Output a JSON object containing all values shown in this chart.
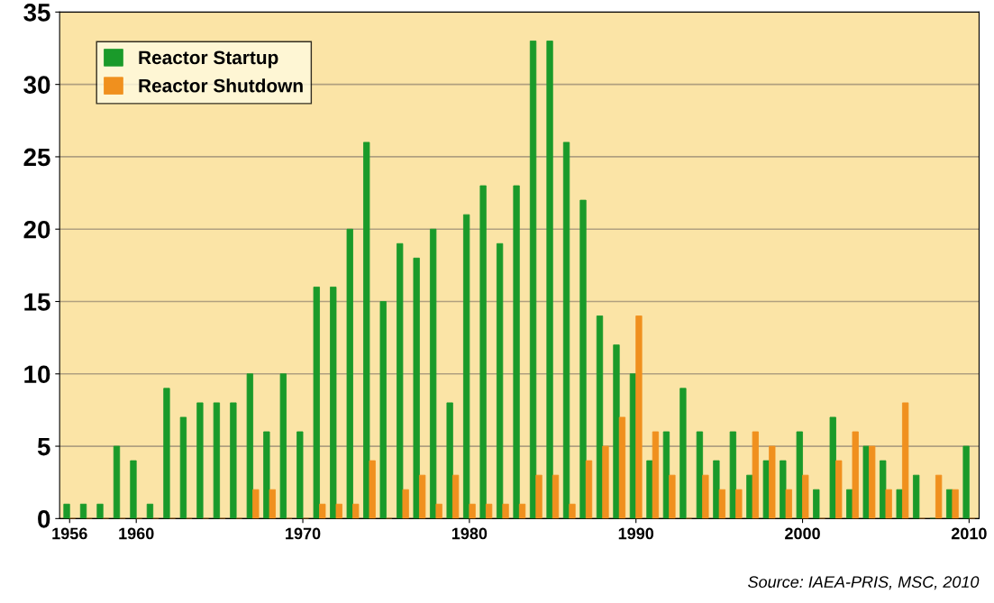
{
  "chart_data": {
    "type": "bar",
    "x": [
      1956,
      1957,
      1958,
      1959,
      1960,
      1961,
      1962,
      1963,
      1964,
      1965,
      1966,
      1967,
      1968,
      1969,
      1970,
      1971,
      1972,
      1973,
      1974,
      1975,
      1976,
      1977,
      1978,
      1979,
      1980,
      1981,
      1982,
      1983,
      1984,
      1985,
      1986,
      1987,
      1988,
      1989,
      1990,
      1991,
      1992,
      1993,
      1994,
      1995,
      1996,
      1997,
      1998,
      1999,
      2000,
      2001,
      2002,
      2003,
      2004,
      2005,
      2006,
      2007,
      2008,
      2009,
      2010
    ],
    "series": [
      {
        "name": "Reactor Startup",
        "color": "#1a9a2a",
        "values": [
          1,
          1,
          1,
          5,
          4,
          1,
          9,
          7,
          8,
          8,
          8,
          10,
          6,
          10,
          6,
          16,
          16,
          20,
          26,
          15,
          19,
          18,
          20,
          8,
          21,
          23,
          19,
          23,
          33,
          33,
          26,
          22,
          14,
          12,
          10,
          4,
          6,
          9,
          6,
          4,
          6,
          3,
          4,
          4,
          6,
          2,
          7,
          2,
          5,
          4,
          2,
          3,
          0,
          2,
          5
        ]
      },
      {
        "name": "Reactor Shutdown",
        "color": "#f0901e",
        "values": [
          0,
          0,
          0,
          0,
          0,
          0,
          0,
          0,
          0,
          0,
          0,
          2,
          2,
          0,
          0,
          1,
          1,
          1,
          4,
          0,
          2,
          3,
          1,
          3,
          1,
          1,
          1,
          1,
          3,
          3,
          1,
          4,
          5,
          7,
          14,
          6,
          3,
          0,
          3,
          2,
          2,
          6,
          5,
          2,
          3,
          0,
          4,
          6,
          5,
          2,
          8,
          0,
          3,
          2,
          0
        ]
      }
    ],
    "xlim": [
      1955.4,
      2010.6
    ],
    "xticks": [
      1956,
      1960,
      1970,
      1980,
      1990,
      2000,
      2010
    ],
    "ylim": [
      0,
      35
    ],
    "yticks": [
      0,
      5,
      10,
      15,
      20,
      25,
      30,
      35
    ],
    "grid": "y",
    "legend": "top left",
    "annotations": [
      "Source: IAEA-PRIS, MSC, 2010"
    ]
  }
}
